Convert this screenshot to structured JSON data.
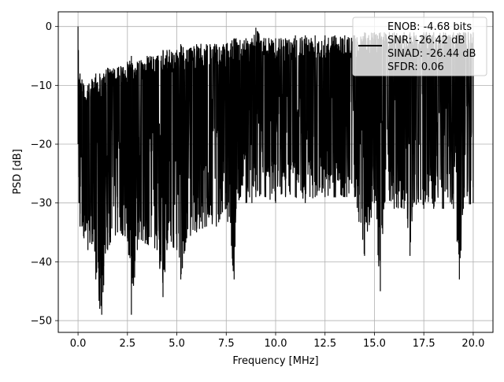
{
  "chart_data": {
    "type": "line",
    "xlabel": "Frequency [MHz]",
    "ylabel": "PSD [dB]",
    "xlim": [
      -1.0,
      21.0
    ],
    "ylim": [
      -52.0,
      2.5
    ],
    "xticks": [
      0.0,
      2.5,
      5.0,
      7.5,
      10.0,
      12.5,
      15.0,
      17.5,
      20.0
    ],
    "xtick_labels": [
      "0.0",
      "2.5",
      "5.0",
      "7.5",
      "10.0",
      "12.5",
      "15.0",
      "17.5",
      "20.0"
    ],
    "yticks": [
      0,
      -10,
      -20,
      -30,
      -40,
      -50
    ],
    "ytick_labels": [
      "0",
      "−10",
      "−20",
      "−30",
      "−40",
      "−50"
    ],
    "grid": true,
    "legend_position": "upper-right",
    "legend_lines": [
      "ENOB: -4.68 bits",
      "SNR: -26.42 dB",
      "SINAD: -26.44 dB",
      "SFDR: 0.06"
    ],
    "line_color": "#000000",
    "series": [
      {
        "x": [
          0.0,
          0.02,
          0.05,
          0.1,
          0.2,
          0.3,
          0.5,
          0.7,
          0.9,
          1.1,
          1.2,
          1.3,
          1.5,
          2.0,
          2.5,
          2.7,
          3.0,
          3.5,
          4.0,
          4.3,
          4.5,
          5.0,
          5.2,
          5.5,
          6.0,
          6.5,
          7.0,
          7.5,
          7.9,
          8.0,
          8.5,
          8.8,
          9.0,
          9.5,
          10.0,
          10.5,
          11.0,
          11.5,
          12.0,
          12.5,
          13.0,
          13.5,
          14.0,
          14.5,
          15.0,
          15.3,
          15.5,
          16.0,
          16.5,
          16.8,
          17.0,
          17.5,
          18.0,
          18.5,
          19.0,
          19.3,
          19.5,
          20.0
        ],
        "upper": [
          0.0,
          -4,
          -9,
          -8,
          -9,
          -10,
          -10,
          -9,
          -8,
          -8,
          -9,
          -8,
          -7,
          -7,
          -6,
          -5,
          -6,
          -5,
          -5,
          -4,
          -4,
          -4,
          -3,
          -4,
          -3,
          -3,
          -3,
          -3,
          -2,
          -2,
          -2,
          -2,
          -0.2,
          -2,
          -2,
          -2,
          -1.5,
          -1.5,
          -1.5,
          -1.5,
          -1.5,
          -1.5,
          -1.5,
          -1,
          -1,
          -1,
          -1,
          -1,
          -1,
          -1,
          -1,
          -1,
          -1,
          -1,
          -1,
          -1,
          -1,
          -1
        ],
        "lower": [
          -20,
          -14,
          -30,
          -34,
          -34,
          -36,
          -38,
          -37,
          -43,
          -48,
          -49,
          -44,
          -38,
          -35,
          -36,
          -49,
          -38,
          -37,
          -38,
          -46,
          -38,
          -38,
          -43,
          -36,
          -35,
          -34,
          -34,
          -31,
          -43,
          -31,
          -30,
          -30,
          -29,
          -29,
          -30,
          -29,
          -29,
          -30,
          -29,
          -29,
          -29,
          -29,
          -29,
          -39,
          -30,
          -45,
          -30,
          -31,
          -31,
          -39,
          -30,
          -31,
          -31,
          -31,
          -31,
          -43,
          -31,
          -30
        ]
      }
    ]
  }
}
